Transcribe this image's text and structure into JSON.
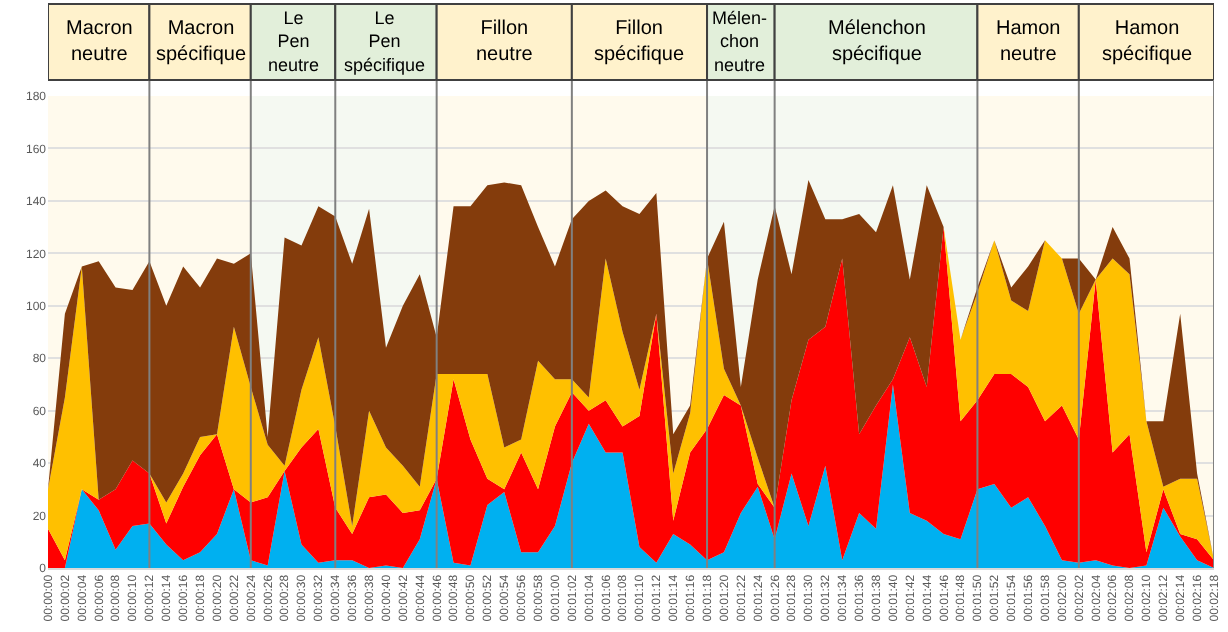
{
  "chart_data": {
    "type": "area",
    "stacked": true,
    "categories": [
      "00:00:00",
      "00:00:02",
      "00:00:04",
      "00:00:06",
      "00:00:08",
      "00:00:10",
      "00:00:12",
      "00:00:14",
      "00:00:16",
      "00:00:18",
      "00:00:20",
      "00:00:22",
      "00:00:24",
      "00:00:26",
      "00:00:28",
      "00:00:30",
      "00:00:32",
      "00:00:34",
      "00:00:36",
      "00:00:38",
      "00:00:40",
      "00:00:42",
      "00:00:44",
      "00:00:46",
      "00:00:48",
      "00:00:50",
      "00:00:52",
      "00:00:54",
      "00:00:56",
      "00:00:58",
      "00:01:00",
      "00:01:02",
      "00:01:04",
      "00:01:06",
      "00:01:08",
      "00:01:10",
      "00:01:12",
      "00:01:14",
      "00:01:16",
      "00:01:18",
      "00:01:20",
      "00:01:22",
      "00:01:24",
      "00:01:26",
      "00:01:28",
      "00:01:30",
      "00:01:32",
      "00:01:34",
      "00:01:36",
      "00:01:38",
      "00:01:40",
      "00:01:42",
      "00:01:44",
      "00:01:46",
      "00:01:48",
      "00:01:50",
      "00:01:52",
      "00:01:54",
      "00:01:56",
      "00:01:58",
      "00:02:00",
      "00:02:02",
      "00:02:04",
      "00:02:06",
      "00:02:08",
      "00:02:10",
      "00:02:12",
      "00:02:14",
      "00:02:16",
      "00:02:18"
    ],
    "series": [
      {
        "color": "#00b0f0",
        "values": [
          0,
          0,
          30,
          22,
          7,
          16,
          17,
          9,
          3,
          6,
          13,
          30,
          3,
          1,
          37,
          9,
          2,
          3,
          3,
          0,
          1,
          0,
          11,
          34,
          2,
          1,
          24,
          29,
          6,
          6,
          16,
          40,
          55,
          44,
          44,
          8,
          2,
          13,
          9,
          3,
          6,
          21,
          31,
          11,
          36,
          16,
          39,
          3,
          21,
          15,
          70,
          21,
          18,
          13,
          11,
          30,
          32,
          23,
          27,
          16,
          3,
          2,
          3,
          1,
          0,
          1,
          23,
          12,
          3,
          0
        ]
      },
      {
        "color": "#ff0000",
        "values": [
          15,
          3,
          0,
          4,
          23,
          25,
          19,
          8,
          28,
          37,
          38,
          0,
          22,
          26,
          0,
          37,
          51,
          20,
          10,
          27,
          27,
          21,
          11,
          0,
          70,
          48,
          10,
          1,
          38,
          24,
          38,
          27,
          5,
          20,
          10,
          50,
          95,
          5,
          35,
          50,
          60,
          41,
          1,
          12,
          28,
          71,
          53,
          115,
          30,
          47,
          2,
          67,
          51,
          117,
          45,
          34,
          42,
          51,
          42,
          40,
          59,
          47,
          107,
          43,
          51,
          5,
          7,
          1,
          8,
          3
        ]
      },
      {
        "color": "#ffc000",
        "values": [
          15,
          62,
          85,
          0,
          0,
          0,
          0,
          8,
          5,
          7,
          0,
          62,
          44,
          20,
          2,
          22,
          35,
          31,
          3,
          33,
          18,
          18,
          9,
          40,
          2,
          25,
          40,
          16,
          5,
          49,
          18,
          5,
          5,
          54,
          36,
          10,
          0,
          18,
          15,
          65,
          10,
          0,
          10,
          0,
          0,
          0,
          0,
          0,
          0,
          0,
          0,
          0,
          0,
          0,
          31,
          41,
          51,
          28,
          29,
          69,
          56,
          48,
          0,
          74,
          61,
          50,
          1,
          21,
          23,
          0
        ]
      },
      {
        "color": "#843c0c",
        "values": [
          0,
          32,
          0,
          91,
          77,
          65,
          81,
          75,
          79,
          57,
          67,
          24,
          51,
          3,
          87,
          55,
          50,
          80,
          100,
          77,
          38,
          61,
          81,
          14,
          64,
          64,
          72,
          101,
          97,
          51,
          43,
          61,
          75,
          26,
          48,
          67,
          46,
          15,
          3,
          0,
          56,
          7,
          68,
          115,
          48,
          61,
          41,
          15,
          84,
          66,
          74,
          22,
          77,
          0,
          0,
          2,
          0,
          5,
          17,
          0,
          0,
          21,
          0,
          12,
          6,
          0,
          25,
          63,
          2,
          0
        ]
      }
    ],
    "ylim": [
      0,
      180
    ],
    "yticks": [
      0,
      20,
      40,
      60,
      80,
      100,
      120,
      140,
      160,
      180
    ],
    "grid": "y",
    "bands": [
      {
        "axis": "x",
        "from": "00:00:00",
        "to": "00:00:12",
        "label": "Macron neutre",
        "color": "#fff2cc"
      },
      {
        "axis": "x",
        "from": "00:00:12",
        "to": "00:00:24",
        "label": "Macron spécifique",
        "color": "#fff2cc"
      },
      {
        "axis": "x",
        "from": "00:00:24",
        "to": "00:00:34",
        "label": "Le Pen neutre",
        "color": "#e2efda"
      },
      {
        "axis": "x",
        "from": "00:00:34",
        "to": "00:00:46",
        "label": "Le Pen spécifique",
        "color": "#e2efda"
      },
      {
        "axis": "x",
        "from": "00:00:46",
        "to": "00:01:02",
        "label": "Fillon neutre",
        "color": "#fff2cc"
      },
      {
        "axis": "x",
        "from": "00:01:02",
        "to": "00:01:18",
        "label": "Fillon spécifique",
        "color": "#fff2cc"
      },
      {
        "axis": "x",
        "from": "00:01:18",
        "to": "00:01:26",
        "label": "Mélen-chon neutre",
        "color": "#e2efda"
      },
      {
        "axis": "x",
        "from": "00:01:26",
        "to": "00:01:50",
        "label": "Mélenchon spécifique",
        "color": "#e2efda"
      },
      {
        "axis": "x",
        "from": "00:01:50",
        "to": "00:02:02",
        "label": "Hamon neutre",
        "color": "#fff2cc"
      },
      {
        "axis": "x",
        "from": "00:02:02",
        "to": "00:02:18",
        "label": "Hamon spécifique",
        "color": "#fff2cc"
      }
    ]
  }
}
